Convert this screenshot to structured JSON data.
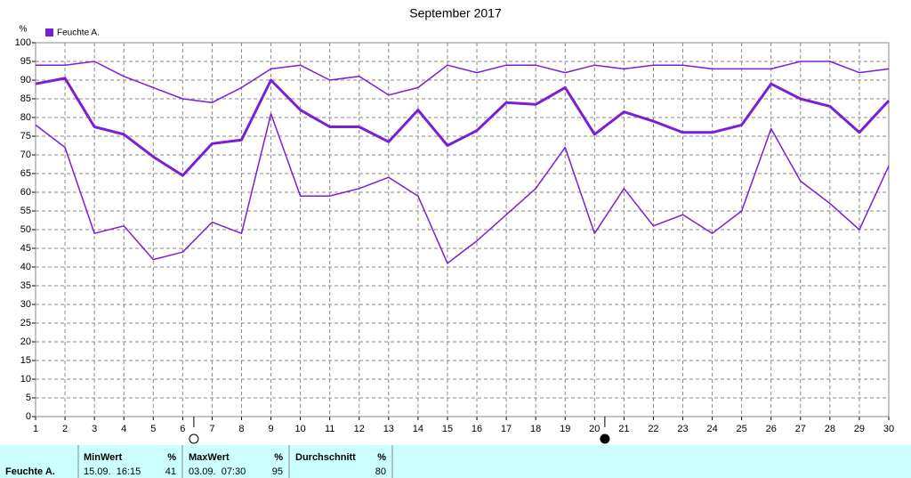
{
  "chart_data": {
    "type": "line",
    "title": "September 2017",
    "y_label": "%",
    "legend": "Feuchte A.",
    "legend_color": "#7a1fd6",
    "x": [
      1,
      2,
      3,
      4,
      5,
      6,
      7,
      8,
      9,
      10,
      11,
      12,
      13,
      14,
      15,
      16,
      17,
      18,
      19,
      20,
      21,
      22,
      23,
      24,
      25,
      26,
      27,
      28,
      29,
      30
    ],
    "xlim": [
      1,
      30
    ],
    "xticks": [
      1,
      2,
      3,
      4,
      5,
      6,
      7,
      8,
      9,
      10,
      11,
      12,
      13,
      14,
      15,
      16,
      17,
      18,
      19,
      20,
      21,
      22,
      23,
      24,
      25,
      26,
      27,
      28,
      29,
      30
    ],
    "ylim": [
      0,
      100
    ],
    "yticks": [
      0,
      5,
      10,
      15,
      20,
      25,
      30,
      35,
      40,
      45,
      50,
      55,
      60,
      65,
      70,
      75,
      80,
      85,
      90,
      95,
      100
    ],
    "grid": true,
    "series": [
      {
        "color": "#7a1fd6",
        "linewidth": 1.5,
        "values": [
          94,
          94,
          95,
          91,
          88,
          85,
          84,
          88,
          93,
          94,
          90,
          91,
          86,
          88,
          94,
          92,
          94,
          94,
          92,
          94,
          93,
          94,
          94,
          93,
          93,
          93,
          95,
          95,
          92,
          93
        ]
      },
      {
        "color": "#7a1fd6",
        "linewidth": 3,
        "values": [
          89,
          90.5,
          77.5,
          75.5,
          69.5,
          64.5,
          73,
          74,
          90,
          82,
          77.5,
          77.5,
          73.5,
          82,
          72.5,
          76.5,
          84,
          83.5,
          88,
          75.5,
          81.5,
          79,
          76,
          76,
          78,
          89,
          85,
          83,
          76,
          84.5
        ]
      },
      {
        "color": "#7a1fd6",
        "linewidth": 1.5,
        "values": [
          78,
          72,
          49,
          51,
          42,
          44,
          52,
          49,
          81,
          59,
          59,
          61,
          64,
          59,
          41,
          47,
          54,
          61,
          72,
          49,
          61,
          51,
          54,
          49,
          55,
          77,
          63,
          57,
          50,
          67
        ]
      }
    ],
    "moon_phases": [
      {
        "x": 6.38,
        "filled": false
      },
      {
        "x": 20.35,
        "filled": true
      }
    ]
  },
  "summary_table": {
    "row_label": "Feuchte A.",
    "columns": [
      {
        "name": "MinWert",
        "unit": "%",
        "time": "15.09.  16:15",
        "value": 41
      },
      {
        "name": "MaxWert",
        "unit": "%",
        "time": "03.09.  07:30",
        "value": 95
      },
      {
        "name": "Durchschnitt",
        "unit": "%",
        "value": 80
      }
    ]
  }
}
